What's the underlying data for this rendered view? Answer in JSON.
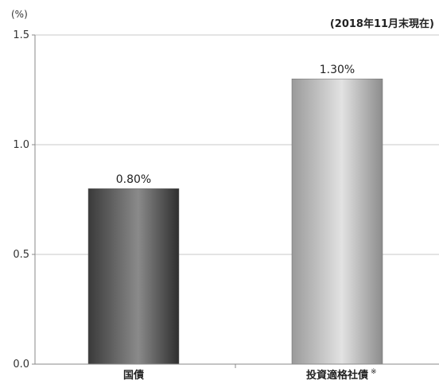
{
  "chart_data": {
    "type": "bar",
    "unit_label": "(%)",
    "date_note": "(2018年11月末現在)",
    "categories": [
      "国債",
      "投資適格社債"
    ],
    "category_notes": [
      "",
      "※"
    ],
    "values": [
      0.8,
      1.3
    ],
    "value_labels": [
      "0.80%",
      "1.30%"
    ],
    "ylim": [
      0.0,
      1.5
    ],
    "yticks": [
      0.0,
      0.5,
      1.0,
      1.5
    ],
    "ytick_labels": [
      "0.0",
      "0.5",
      "1.0",
      "1.5"
    ],
    "grid": true,
    "bar_colors": [
      "#5a5a5a",
      "#b4b4b4"
    ]
  }
}
